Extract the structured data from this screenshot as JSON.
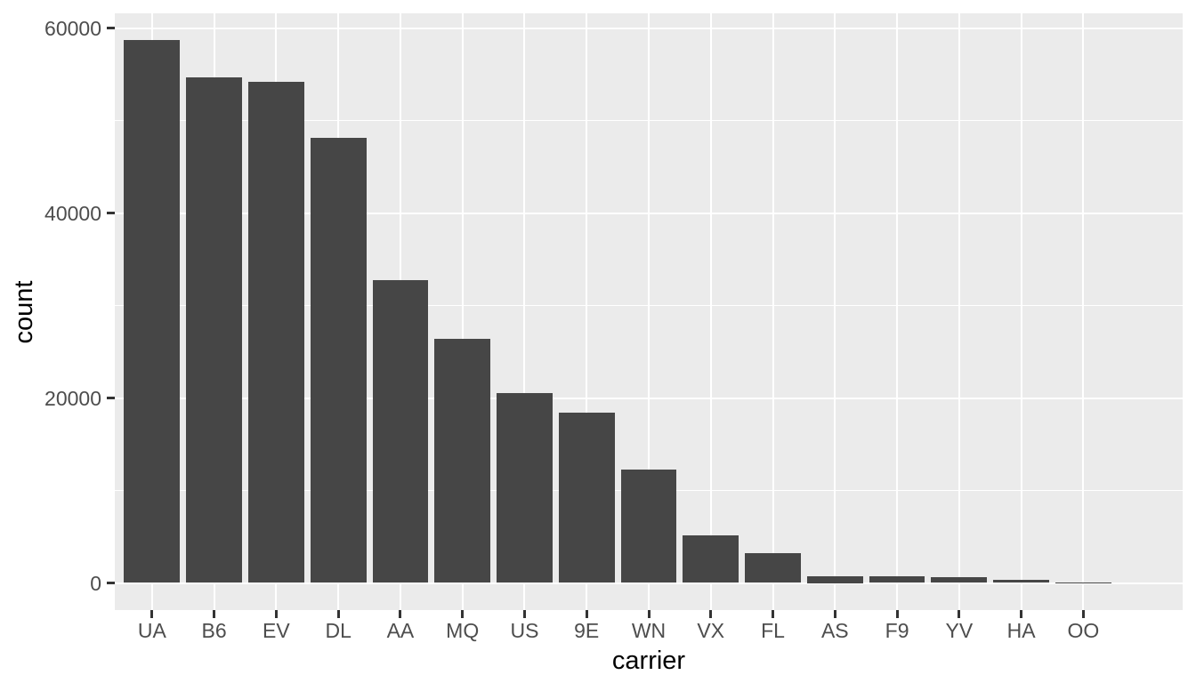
{
  "chart_data": {
    "type": "bar",
    "title": "",
    "xlabel": "carrier",
    "ylabel": "count",
    "categories": [
      "UA",
      "B6",
      "EV",
      "DL",
      "AA",
      "MQ",
      "US",
      "9E",
      "WN",
      "VX",
      "FL",
      "AS",
      "F9",
      "YV",
      "HA",
      "OO"
    ],
    "values": [
      58665,
      54635,
      54173,
      48110,
      32729,
      26397,
      20536,
      18460,
      12275,
      5162,
      3260,
      714,
      685,
      601,
      342,
      32
    ],
    "y_axis": {
      "ticks": [
        0,
        20000,
        40000,
        60000
      ],
      "tick_labels": [
        "0",
        "20000",
        "40000",
        "60000"
      ],
      "minor_ticks": [
        10000,
        30000,
        50000
      ],
      "range_expanded": [
        -2933,
        61598
      ]
    },
    "x_axis": {
      "category_expand": 0.6,
      "bar_width_fraction": 0.9
    },
    "legend_position": "none",
    "grid": "major-and-minor-horizontal-major-vertical",
    "style": {
      "figure_background": "#FFFFFF",
      "panel_background": "#EBEBEB",
      "gridline_color": "#FFFFFF",
      "bar_fill": "#464646",
      "tick_mark_color": "#333333",
      "tick_label_color": "#4D4D4D",
      "axis_title_color": "#000000"
    }
  }
}
